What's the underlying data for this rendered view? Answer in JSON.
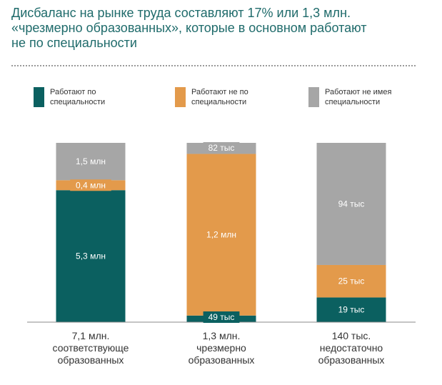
{
  "title_lines": [
    "Дисбаланс на рынке труда составляют 17% или  1,3 млн.",
    "«чрезмерно образованных», которые в основном работают",
    "не по специальности"
  ],
  "legend": [
    {
      "line1": "Работают  по",
      "line2": "специальности",
      "color": "#0b6060"
    },
    {
      "line1": "Работают  не по",
      "line2": "специальности",
      "color": "#e39a4b"
    },
    {
      "line1": "Работают  не имея",
      "line2": "специальности",
      "color": "#a6a6a6"
    }
  ],
  "chart_data": {
    "type": "bar",
    "stacked": "100%",
    "categories": [
      [
        "7,1 млн.",
        "соответствующе",
        "образованных"
      ],
      [
        "1,3 млн.",
        "чрезмерно",
        "образованных"
      ],
      [
        "140 тыс.",
        "недостаточно",
        "образованных"
      ]
    ],
    "series": [
      {
        "color": "#0b6060",
        "values": [
          5.3,
          0.049,
          0.019
        ],
        "labels": [
          "5,3 млн",
          "49 тыс",
          "19 тыс"
        ]
      },
      {
        "color": "#e39a4b",
        "values": [
          0.4,
          1.2,
          0.025
        ],
        "labels": [
          "0,4 млн",
          "1,2 млн",
          "25 тыс"
        ]
      },
      {
        "color": "#a6a6a6",
        "values": [
          1.5,
          0.082,
          0.094
        ],
        "labels": [
          "1,5 млн",
          "82 тыс",
          "94 тыс"
        ]
      }
    ],
    "grid": false,
    "legend_position": "top"
  }
}
